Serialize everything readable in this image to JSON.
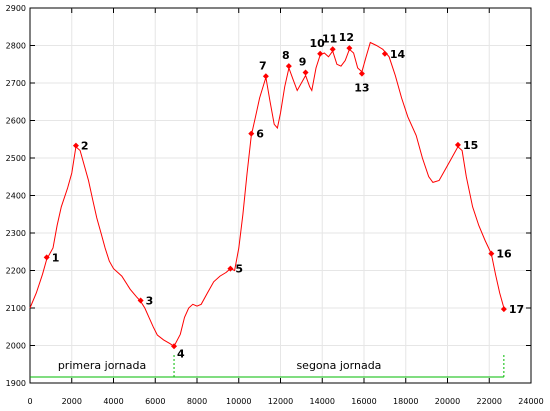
{
  "chart_data": {
    "type": "line",
    "title": "",
    "xlabel": "",
    "ylabel": "",
    "xlim": [
      0,
      24000
    ],
    "ylim": [
      1900,
      2900
    ],
    "x_ticks": [
      0,
      2000,
      4000,
      6000,
      8000,
      10000,
      12000,
      14000,
      16000,
      18000,
      20000,
      22000,
      24000
    ],
    "y_ticks": [
      1900,
      2000,
      2100,
      2200,
      2300,
      2400,
      2500,
      2600,
      2700,
      2800,
      2900
    ],
    "grid": true,
    "colors": {
      "profile": "#ff0000",
      "waypoints": "#ff0000",
      "grid": "#e6e6e6",
      "stages": "#00bb00"
    },
    "profile": [
      [
        0,
        2100
      ],
      [
        300,
        2140
      ],
      [
        600,
        2190
      ],
      [
        800,
        2230
      ],
      [
        1100,
        2260
      ],
      [
        1300,
        2320
      ],
      [
        1500,
        2370
      ],
      [
        1800,
        2420
      ],
      [
        2000,
        2460
      ],
      [
        2200,
        2530
      ],
      [
        2400,
        2520
      ],
      [
        2600,
        2480
      ],
      [
        2800,
        2440
      ],
      [
        3000,
        2390
      ],
      [
        3200,
        2340
      ],
      [
        3400,
        2300
      ],
      [
        3600,
        2260
      ],
      [
        3800,
        2225
      ],
      [
        4000,
        2205
      ],
      [
        4400,
        2185
      ],
      [
        4800,
        2150
      ],
      [
        5100,
        2130
      ],
      [
        5300,
        2118
      ],
      [
        5500,
        2100
      ],
      [
        5700,
        2075
      ],
      [
        5900,
        2050
      ],
      [
        6100,
        2028
      ],
      [
        6400,
        2015
      ],
      [
        6700,
        2005
      ],
      [
        6900,
        1998
      ],
      [
        7200,
        2030
      ],
      [
        7400,
        2075
      ],
      [
        7600,
        2100
      ],
      [
        7800,
        2110
      ],
      [
        8000,
        2105
      ],
      [
        8200,
        2110
      ],
      [
        8500,
        2140
      ],
      [
        8800,
        2170
      ],
      [
        9100,
        2185
      ],
      [
        9400,
        2195
      ],
      [
        9600,
        2205
      ],
      [
        9800,
        2200
      ],
      [
        10000,
        2260
      ],
      [
        10200,
        2350
      ],
      [
        10400,
        2460
      ],
      [
        10600,
        2560
      ],
      [
        10800,
        2610
      ],
      [
        11000,
        2660
      ],
      [
        11300,
        2715
      ],
      [
        11500,
        2650
      ],
      [
        11700,
        2590
      ],
      [
        11850,
        2580
      ],
      [
        12000,
        2620
      ],
      [
        12200,
        2690
      ],
      [
        12400,
        2740
      ],
      [
        12600,
        2710
      ],
      [
        12800,
        2680
      ],
      [
        13000,
        2700
      ],
      [
        13200,
        2720
      ],
      [
        13400,
        2690
      ],
      [
        13500,
        2680
      ],
      [
        13700,
        2740
      ],
      [
        13900,
        2775
      ],
      [
        14100,
        2780
      ],
      [
        14300,
        2770
      ],
      [
        14500,
        2785
      ],
      [
        14700,
        2750
      ],
      [
        14900,
        2745
      ],
      [
        15100,
        2760
      ],
      [
        15300,
        2790
      ],
      [
        15500,
        2780
      ],
      [
        15700,
        2740
      ],
      [
        15900,
        2730
      ],
      [
        16100,
        2770
      ],
      [
        16300,
        2808
      ],
      [
        16600,
        2800
      ],
      [
        16900,
        2790
      ],
      [
        17200,
        2770
      ],
      [
        17500,
        2720
      ],
      [
        17800,
        2660
      ],
      [
        18100,
        2610
      ],
      [
        18500,
        2560
      ],
      [
        18800,
        2500
      ],
      [
        19100,
        2450
      ],
      [
        19300,
        2435
      ],
      [
        19600,
        2440
      ],
      [
        19900,
        2470
      ],
      [
        20200,
        2500
      ],
      [
        20500,
        2530
      ],
      [
        20700,
        2520
      ],
      [
        20900,
        2450
      ],
      [
        21200,
        2370
      ],
      [
        21500,
        2320
      ],
      [
        21800,
        2280
      ],
      [
        22100,
        2245
      ],
      [
        22300,
        2190
      ],
      [
        22500,
        2140
      ],
      [
        22700,
        2100
      ]
    ],
    "waypoints": [
      {
        "label": "1",
        "x": 800,
        "y": 2235
      },
      {
        "label": "2",
        "x": 2200,
        "y": 2533
      },
      {
        "label": "3",
        "x": 5300,
        "y": 2120
      },
      {
        "label": "4",
        "x": 6900,
        "y": 1998
      },
      {
        "label": "5",
        "x": 9600,
        "y": 2205
      },
      {
        "label": "6",
        "x": 10600,
        "y": 2565
      },
      {
        "label": "7",
        "x": 11300,
        "y": 2718
      },
      {
        "label": "8",
        "x": 12400,
        "y": 2745
      },
      {
        "label": "9",
        "x": 13200,
        "y": 2728
      },
      {
        "label": "10",
        "x": 13900,
        "y": 2778
      },
      {
        "label": "11",
        "x": 14500,
        "y": 2790
      },
      {
        "label": "12",
        "x": 15300,
        "y": 2793
      },
      {
        "label": "13",
        "x": 15900,
        "y": 2725
      },
      {
        "label": "14",
        "x": 17000,
        "y": 2778
      },
      {
        "label": "15",
        "x": 20500,
        "y": 2535
      },
      {
        "label": "16",
        "x": 22100,
        "y": 2245
      },
      {
        "label": "17",
        "x": 22700,
        "y": 2097
      }
    ],
    "stages": [
      {
        "label": "primera jornada",
        "x_start": 0,
        "x_end": 6900
      },
      {
        "label": "segona jornada",
        "x_start": 6900,
        "x_end": 22700
      }
    ]
  }
}
